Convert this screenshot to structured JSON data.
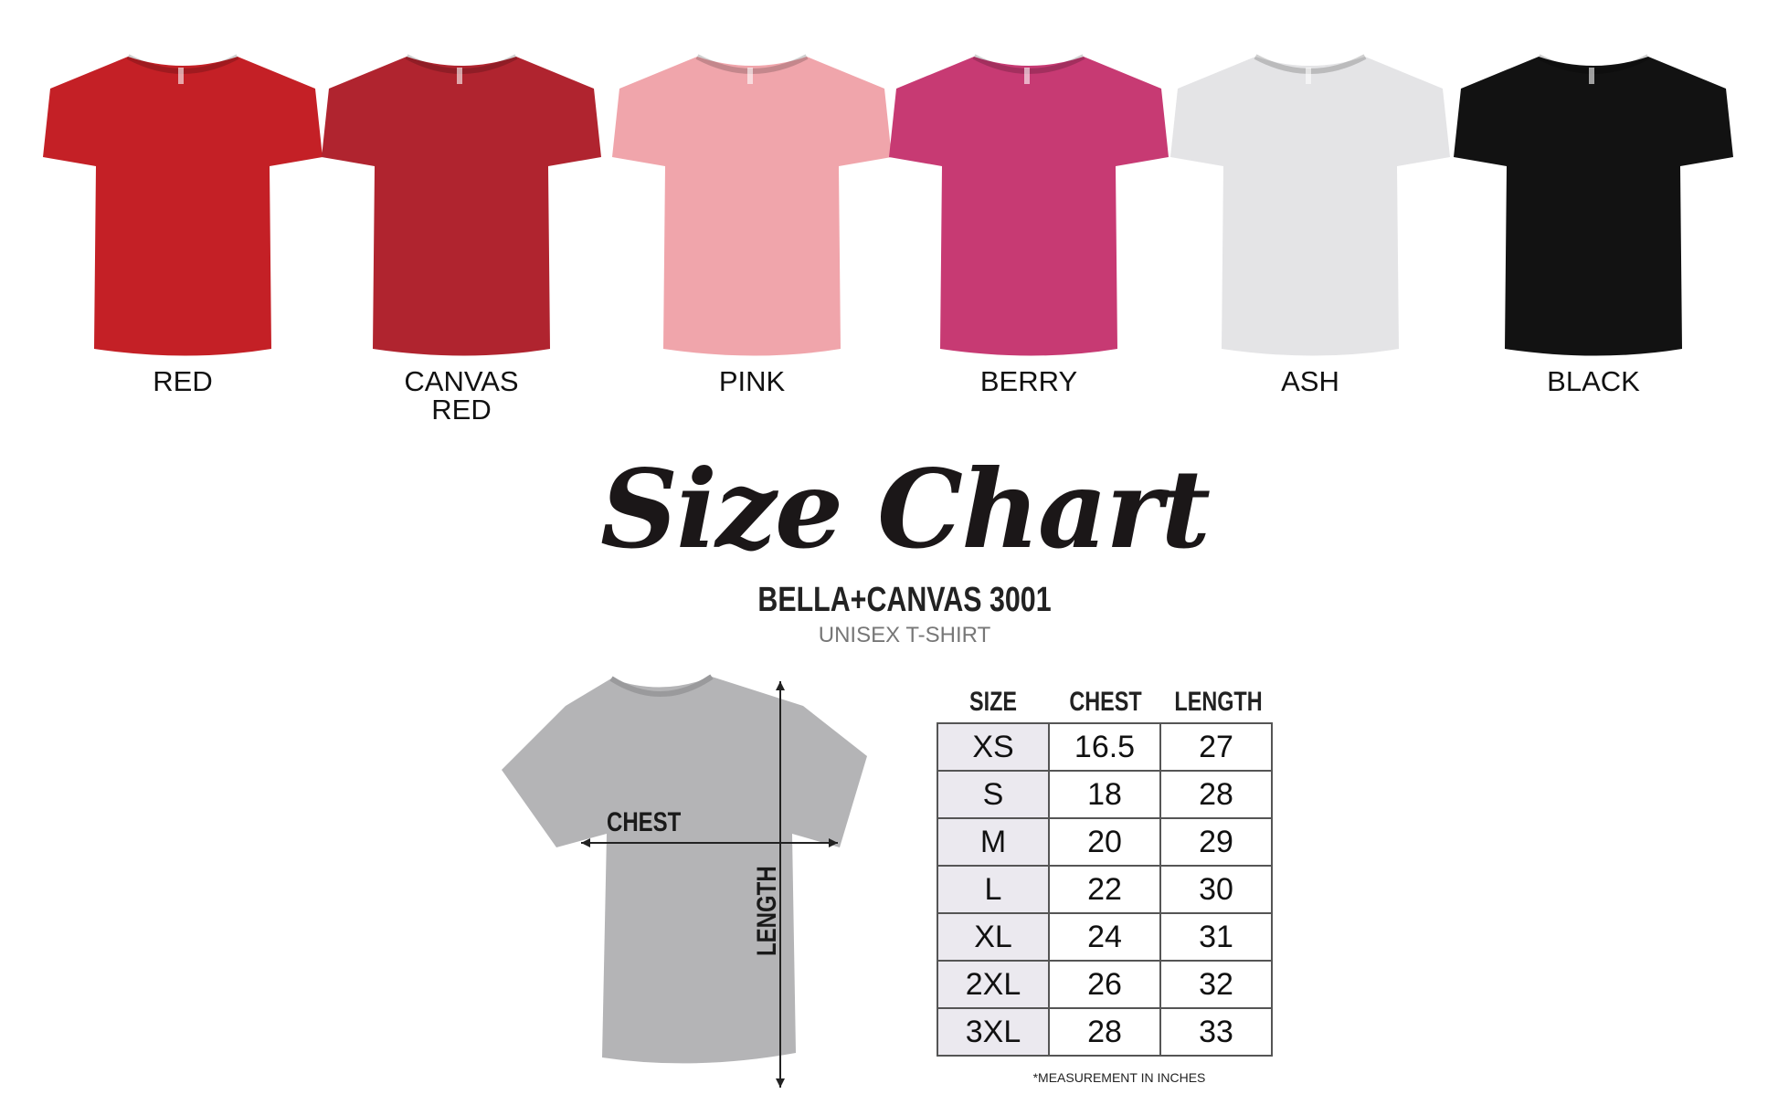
{
  "colors": [
    {
      "label": "RED",
      "hex": "#c42026"
    },
    {
      "label": "CANVAS RED",
      "hex": "#b0242f"
    },
    {
      "label": "PINK",
      "hex": "#f0a5ab"
    },
    {
      "label": "BERRY",
      "hex": "#c73a73"
    },
    {
      "label": "ASH",
      "hex": "#e4e4e6"
    },
    {
      "label": "BLACK",
      "hex": "#121212"
    }
  ],
  "title": "Size Chart",
  "brand": "BELLA+CANVAS 3001",
  "product": "UNISEX T-SHIRT",
  "diagram": {
    "chest_label": "CHEST",
    "length_label": "LENGTH",
    "shirt_color": "#b4b4b6"
  },
  "table": {
    "headers": [
      "SIZE",
      "CHEST",
      "LENGTH"
    ],
    "rows": [
      [
        "XS",
        "16.5",
        "27"
      ],
      [
        "S",
        "18",
        "28"
      ],
      [
        "M",
        "20",
        "29"
      ],
      [
        "L",
        "22",
        "30"
      ],
      [
        "XL",
        "24",
        "31"
      ],
      [
        "2XL",
        "26",
        "32"
      ],
      [
        "3XL",
        "28",
        "33"
      ]
    ],
    "footnote": "*MEASUREMENT IN INCHES"
  }
}
